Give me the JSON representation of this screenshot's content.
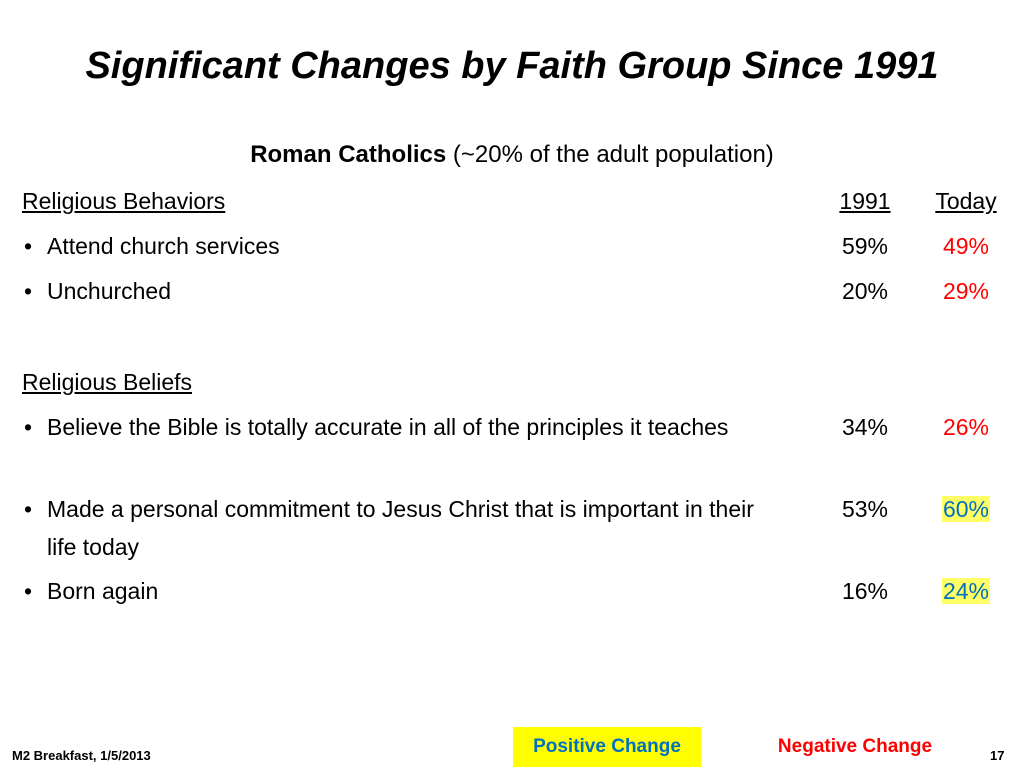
{
  "title": "Significant Changes by Faith Group Since 1991",
  "subtitle": {
    "bold": "Roman Catholics",
    "rest": "(~20% of the adult population)"
  },
  "columns": {
    "year": "1991",
    "today": "Today"
  },
  "behaviors": {
    "heading": "Religious Behaviors",
    "items": [
      {
        "text": "Attend church services",
        "y1991": "59%",
        "today": "49%",
        "change": "negative"
      },
      {
        "text": "Unchurched",
        "y1991": "20%",
        "today": "29%",
        "change": "negative"
      }
    ]
  },
  "beliefs": {
    "heading": "Religious Beliefs",
    "items": [
      {
        "text": "Believe the Bible is totally accurate in all of the principles it teaches",
        "y1991": "34%",
        "today": "26%",
        "change": "negative"
      },
      {
        "text": "Made a personal commitment to Jesus Christ that is important in their life today",
        "y1991": "53%",
        "today": "60%",
        "change": "positive"
      },
      {
        "text": "Born again",
        "y1991": "16%",
        "today": "24%",
        "change": "positive"
      }
    ]
  },
  "bullet_glyph": "•",
  "legend": {
    "positive": "Positive Change",
    "negative": "Negative Change"
  },
  "footer": {
    "left": "M2 Breakfast, 1/5/2013",
    "page": "17"
  },
  "colors": {
    "negative": "#ff0000",
    "positive_text": "#0070c0",
    "positive_highlight": "#ffff00"
  }
}
